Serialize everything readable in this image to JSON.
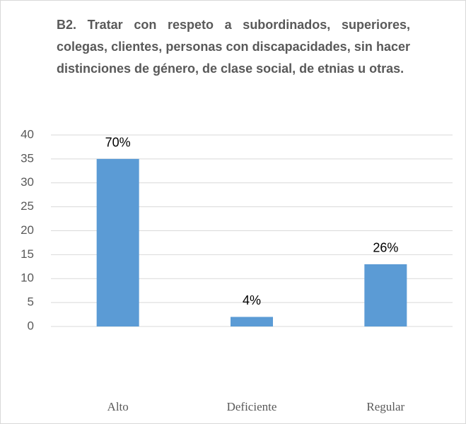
{
  "chart_data": {
    "type": "bar",
    "title": "B2. Tratar con respeto a subordinados, superiores, colegas, clientes, personas con discapacidades, sin hacer distinciones de género, de clase social, de etnias u otras.",
    "categories": [
      "Alto",
      "Deficiente",
      "Regular"
    ],
    "values": [
      35,
      2,
      13
    ],
    "value_labels": [
      "70%",
      "4%",
      "26%"
    ],
    "color": "#5b9bd5",
    "ylim": [
      0,
      40
    ],
    "yticks": [
      0,
      5,
      10,
      15,
      20,
      25,
      30,
      35,
      40
    ],
    "grid": true
  }
}
